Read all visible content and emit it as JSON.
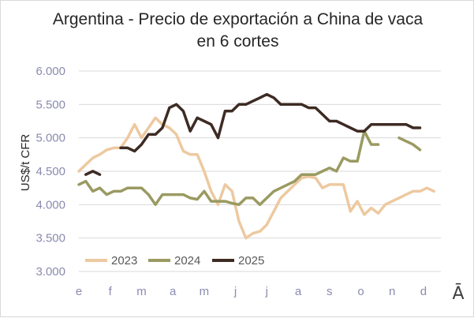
{
  "chart_data": {
    "type": "line",
    "title": "Argentina - Precio de exportación a China de vaca en 6 cortes",
    "title_lines": [
      "Argentina - Precio de exportación a China de vaca",
      "en 6 cortes"
    ],
    "ylabel": "US$/t CFR",
    "xlabel": "",
    "ylim": [
      3000,
      6000
    ],
    "yticks": [
      3000,
      3500,
      4000,
      4500,
      5000,
      5500,
      6000
    ],
    "ytick_labels": [
      "3.000",
      "3.500",
      "4.000",
      "4.500",
      "5.000",
      "5.500",
      "6.000"
    ],
    "xlim": [
      0,
      52
    ],
    "xticks": [
      0,
      4.5,
      9,
      13.5,
      18,
      22.5,
      27,
      31.5,
      36,
      40.5,
      45,
      49.5
    ],
    "xtick_labels": [
      "e",
      "f",
      "m",
      "a",
      "m",
      "j",
      "j",
      "a",
      "s",
      "o",
      "n",
      "d"
    ],
    "grid": "horizontal",
    "legend_position": "bottom-left",
    "series": [
      {
        "name": "2023",
        "color": "#edc9a0",
        "segments": [
          [
            [
              0,
              4500
            ],
            [
              1,
              4600
            ],
            [
              2,
              4700
            ],
            [
              3,
              4750
            ],
            [
              4,
              4820
            ],
            [
              5,
              4850
            ],
            [
              6,
              4850
            ],
            [
              7,
              5000
            ],
            [
              8,
              5200
            ],
            [
              9,
              5000
            ],
            [
              10,
              5150
            ],
            [
              11,
              5300
            ],
            [
              12,
              5200
            ],
            [
              13,
              5150
            ],
            [
              14,
              5050
            ],
            [
              15,
              4800
            ],
            [
              16,
              4750
            ],
            [
              17,
              4750
            ],
            [
              18,
              4500
            ],
            [
              19,
              4200
            ],
            [
              20,
              4000
            ],
            [
              21,
              4300
            ],
            [
              22,
              4200
            ],
            [
              23,
              3750
            ],
            [
              24,
              3500
            ],
            [
              25,
              3570
            ],
            [
              26,
              3600
            ],
            [
              27,
              3700
            ],
            [
              28,
              3900
            ],
            [
              29,
              4100
            ],
            [
              30,
              4200
            ],
            [
              31,
              4300
            ],
            [
              32,
              4400
            ],
            [
              33,
              4420
            ],
            [
              34,
              4400
            ],
            [
              35,
              4250
            ],
            [
              36,
              4300
            ],
            [
              37,
              4300
            ],
            [
              38,
              4300
            ],
            [
              39,
              3900
            ],
            [
              40,
              4050
            ],
            [
              41,
              3850
            ],
            [
              42,
              3950
            ],
            [
              43,
              3870
            ],
            [
              44,
              4000
            ],
            [
              45,
              4050
            ],
            [
              46,
              4100
            ],
            [
              47,
              4150
            ],
            [
              48,
              4200
            ],
            [
              49,
              4200
            ],
            [
              50,
              4250
            ],
            [
              51,
              4200
            ]
          ]
        ]
      },
      {
        "name": "2024",
        "color": "#9a9a62",
        "segments": [
          [
            [
              0,
              4300
            ],
            [
              1,
              4350
            ],
            [
              2,
              4200
            ],
            [
              3,
              4250
            ],
            [
              4,
              4150
            ],
            [
              5,
              4200
            ],
            [
              6,
              4200
            ],
            [
              7,
              4250
            ],
            [
              8,
              4250
            ],
            [
              9,
              4250
            ],
            [
              10,
              4150
            ],
            [
              11,
              4000
            ],
            [
              12,
              4150
            ],
            [
              13,
              4150
            ],
            [
              14,
              4150
            ],
            [
              15,
              4150
            ],
            [
              16,
              4100
            ],
            [
              17,
              4080
            ],
            [
              18,
              4200
            ],
            [
              19,
              4050
            ],
            [
              20,
              4050
            ],
            [
              21,
              4050
            ],
            [
              22,
              4020
            ],
            [
              23,
              4000
            ],
            [
              24,
              4100
            ],
            [
              25,
              4100
            ],
            [
              26,
              4000
            ],
            [
              27,
              4100
            ],
            [
              28,
              4200
            ],
            [
              29,
              4250
            ],
            [
              30,
              4300
            ],
            [
              31,
              4350
            ],
            [
              32,
              4450
            ],
            [
              33,
              4450
            ],
            [
              34,
              4450
            ],
            [
              35,
              4500
            ],
            [
              36,
              4550
            ],
            [
              37,
              4500
            ],
            [
              38,
              4700
            ],
            [
              39,
              4650
            ],
            [
              40,
              4650
            ],
            [
              41,
              5100
            ],
            [
              42,
              4900
            ],
            [
              43,
              4900
            ]
          ],
          [
            [
              46,
              5000
            ],
            [
              47,
              4950
            ],
            [
              48,
              4900
            ],
            [
              49,
              4820
            ]
          ]
        ]
      },
      {
        "name": "2025",
        "color": "#3d2b23",
        "segments": [
          [
            [
              1,
              4450
            ],
            [
              2,
              4500
            ],
            [
              3,
              4450
            ]
          ],
          [
            [
              6,
              4850
            ],
            [
              7,
              4850
            ],
            [
              8,
              4800
            ],
            [
              9,
              4900
            ],
            [
              10,
              5050
            ],
            [
              11,
              5050
            ],
            [
              12,
              5150
            ],
            [
              13,
              5450
            ],
            [
              14,
              5500
            ],
            [
              15,
              5400
            ],
            [
              16,
              5100
            ],
            [
              17,
              5300
            ],
            [
              18,
              5250
            ],
            [
              19,
              5200
            ],
            [
              20,
              5000
            ],
            [
              21,
              5400
            ],
            [
              22,
              5400
            ],
            [
              23,
              5500
            ],
            [
              24,
              5500
            ],
            [
              25,
              5550
            ],
            [
              26,
              5600
            ],
            [
              27,
              5650
            ],
            [
              28,
              5600
            ],
            [
              29,
              5500
            ],
            [
              30,
              5500
            ],
            [
              31,
              5500
            ],
            [
              32,
              5500
            ],
            [
              33,
              5450
            ],
            [
              34,
              5450
            ],
            [
              35,
              5350
            ],
            [
              36,
              5250
            ],
            [
              37,
              5250
            ],
            [
              38,
              5200
            ],
            [
              39,
              5150
            ],
            [
              40,
              5100
            ],
            [
              41,
              5100
            ],
            [
              42,
              5200
            ],
            [
              43,
              5200
            ],
            [
              44,
              5200
            ],
            [
              45,
              5200
            ],
            [
              46,
              5200
            ],
            [
              47,
              5200
            ],
            [
              48,
              5150
            ],
            [
              49,
              5150
            ]
          ]
        ]
      }
    ],
    "logo_text": "Ā"
  }
}
